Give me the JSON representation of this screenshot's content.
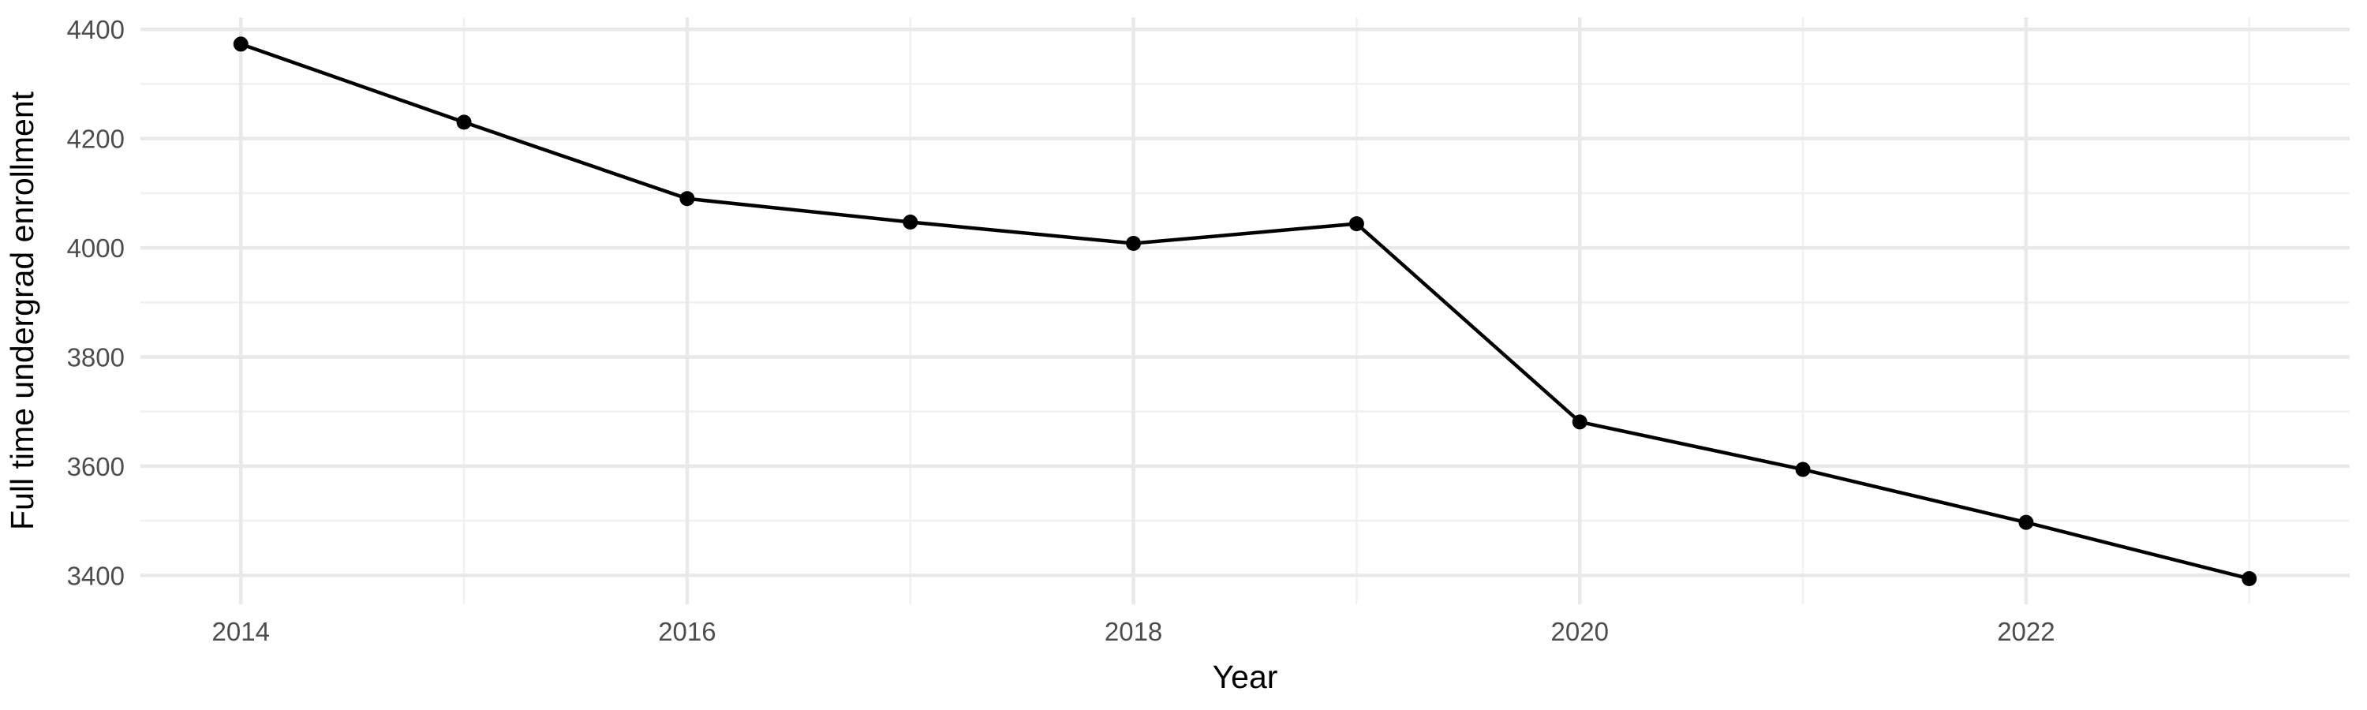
{
  "figure": {
    "background": "#ffffff"
  },
  "chart_data": {
    "type": "line",
    "title": "",
    "xlabel": "Year",
    "ylabel": "Full time undergrad enrollment",
    "x": [
      2014,
      2015,
      2016,
      2017,
      2018,
      2019,
      2020,
      2021,
      2022,
      2023
    ],
    "series": [
      {
        "name": "Full time undergrad enrollment",
        "values": [
          4373,
          4230,
          4090,
          4047,
          4008,
          4044,
          3681,
          3594,
          3497,
          3394
        ]
      }
    ],
    "xlim": [
      2013.55,
      2023.45
    ],
    "ylim": [
      3347,
      4422
    ],
    "x_ticks": {
      "major": [
        2014,
        2016,
        2018,
        2020,
        2022
      ],
      "minor": [
        2015,
        2017,
        2019,
        2021,
        2023
      ]
    },
    "y_ticks": {
      "major": [
        3400,
        3600,
        3800,
        4000,
        4200,
        4400
      ],
      "minor": [
        3500,
        3700,
        3900,
        4100,
        4300
      ]
    },
    "grid": "major-and-minor",
    "legend": "none",
    "colors": {
      "line": "#000000",
      "point": "#000000",
      "grid_major": "#e9e9e9",
      "grid_minor": "#f1f1f1",
      "axis_text": "#4d4d4d",
      "axis_title": "#000000",
      "panel_background": "#ffffff"
    }
  }
}
